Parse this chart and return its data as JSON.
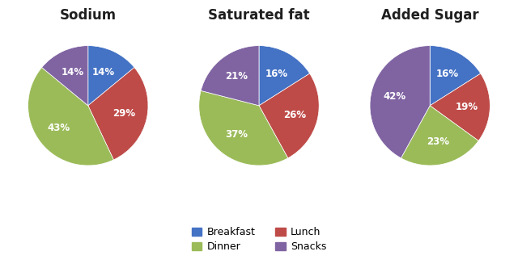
{
  "charts": [
    {
      "title": "Sodium",
      "values": [
        14,
        29,
        43,
        14
      ],
      "labels": [
        "Breakfast",
        "Lunch",
        "Dinner",
        "Snacks"
      ]
    },
    {
      "title": "Saturated fat",
      "values": [
        16,
        26,
        37,
        21
      ],
      "labels": [
        "Breakfast",
        "Lunch",
        "Dinner",
        "Snacks"
      ]
    },
    {
      "title": "Added Sugar",
      "values": [
        16,
        19,
        23,
        42
      ],
      "labels": [
        "Breakfast",
        "Lunch",
        "Dinner",
        "Snacks"
      ]
    }
  ],
  "colors": {
    "Breakfast": "#4472C4",
    "Lunch": "#BE4B48",
    "Dinner": "#9BBB59",
    "Snacks": "#8064A2"
  },
  "legend_order": [
    "Breakfast",
    "Dinner",
    "Lunch",
    "Snacks"
  ],
  "background_color": "#ffffff",
  "title_fontsize": 12,
  "label_fontsize": 8.5,
  "legend_fontsize": 9
}
